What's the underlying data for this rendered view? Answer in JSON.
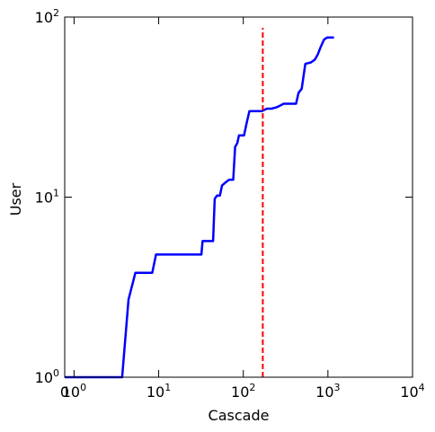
{
  "chart_data": {
    "type": "line",
    "title": "",
    "xlabel": "Cascade",
    "ylabel": "User",
    "x_scale": "symlog",
    "y_scale": "log",
    "xlim": [
      0,
      10000
    ],
    "ylim": [
      1,
      100
    ],
    "x_ticks": [
      {
        "value": 0,
        "label": "0"
      },
      {
        "value": 1,
        "base": "10",
        "exp": "0"
      },
      {
        "value": 10,
        "base": "10",
        "exp": "1"
      },
      {
        "value": 100,
        "base": "10",
        "exp": "2"
      },
      {
        "value": 1000,
        "base": "10",
        "exp": "3"
      },
      {
        "value": 10000,
        "base": "10",
        "exp": "4"
      }
    ],
    "y_ticks": [
      {
        "value": 1,
        "base": "10",
        "exp": "0"
      },
      {
        "value": 10,
        "base": "10",
        "exp": "1"
      },
      {
        "value": 100,
        "base": "10",
        "exp": "2"
      }
    ],
    "grid": false,
    "series": [
      {
        "color": "#0000ff",
        "style": "solid",
        "points": [
          [
            0,
            1.0
          ],
          [
            3.7,
            1.0
          ],
          [
            4.4,
            2.7
          ],
          [
            5.3,
            3.8
          ],
          [
            8.4,
            3.8
          ],
          [
            9.3,
            4.8
          ],
          [
            32,
            4.8
          ],
          [
            33,
            5.7
          ],
          [
            44,
            5.7
          ],
          [
            46,
            9.8
          ],
          [
            49,
            10.2
          ],
          [
            53,
            10.2
          ],
          [
            56,
            11.6
          ],
          [
            62,
            12.1
          ],
          [
            68,
            12.5
          ],
          [
            76,
            12.5
          ],
          [
            80,
            19
          ],
          [
            85,
            20
          ],
          [
            89,
            22
          ],
          [
            102,
            22
          ],
          [
            110,
            26
          ],
          [
            118,
            30
          ],
          [
            150,
            30
          ],
          [
            165,
            30
          ],
          [
            190,
            31
          ],
          [
            215,
            31
          ],
          [
            245,
            31.5
          ],
          [
            265,
            32
          ],
          [
            300,
            33
          ],
          [
            330,
            33
          ],
          [
            420,
            33
          ],
          [
            450,
            38
          ],
          [
            490,
            40
          ],
          [
            540,
            55
          ],
          [
            630,
            56
          ],
          [
            700,
            58
          ],
          [
            760,
            62
          ],
          [
            820,
            68
          ],
          [
            900,
            75
          ],
          [
            980,
            77
          ],
          [
            1100,
            77
          ],
          [
            1180,
            77
          ]
        ]
      },
      {
        "color": "#ff0000",
        "style": "dashed",
        "points": [
          [
            170,
            1
          ],
          [
            170,
            87
          ]
        ]
      }
    ]
  }
}
